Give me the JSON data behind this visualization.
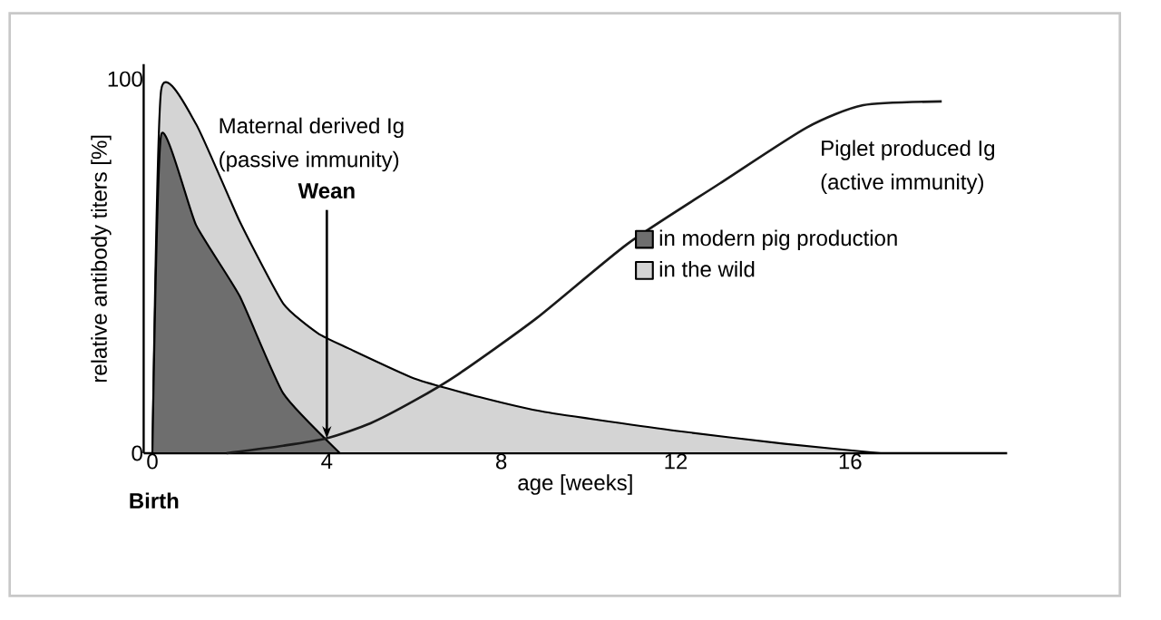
{
  "chart_data": {
    "type": "area",
    "xlabel": "age [weeks]",
    "ylabel": "relative antibody titers [%]",
    "xlim": [
      -0.2,
      19.6
    ],
    "ylim": [
      0,
      104
    ],
    "xticks": [
      0,
      4,
      8,
      12,
      16
    ],
    "yticks": [
      0,
      100
    ],
    "legend": "right",
    "series": [
      {
        "name": "in the wild",
        "color": "#d4d4d4",
        "x": [
          0,
          0.2,
          1,
          2,
          3,
          3.8,
          4.5,
          6,
          7.5,
          9,
          12,
          14.5,
          16.7
        ],
        "values": [
          0,
          97,
          88,
          62,
          40,
          32,
          28,
          20,
          15,
          11,
          6,
          2.5,
          0
        ]
      },
      {
        "name": "in modern pig production",
        "color": "#6e6e6e",
        "x": [
          0,
          0.2,
          1,
          2,
          3,
          4.3
        ],
        "values": [
          0,
          85,
          61,
          42,
          16,
          0
        ]
      },
      {
        "type": "line",
        "color": "#1a1a1a",
        "x": [
          1.7,
          3,
          4,
          5,
          6,
          7,
          8.8,
          10.9,
          13,
          15,
          16.3,
          18.1
        ],
        "values": [
          0,
          2,
          4,
          8,
          14,
          21,
          36,
          56,
          72,
          87,
          93,
          94
        ]
      }
    ],
    "annotations": [
      "Maternal derived Ig",
      "(passive immunity)",
      "Piglet produced Ig",
      "(active immunity)",
      {
        "text": "Wean",
        "x": 4,
        "y": 4
      },
      "Birth"
    ]
  }
}
